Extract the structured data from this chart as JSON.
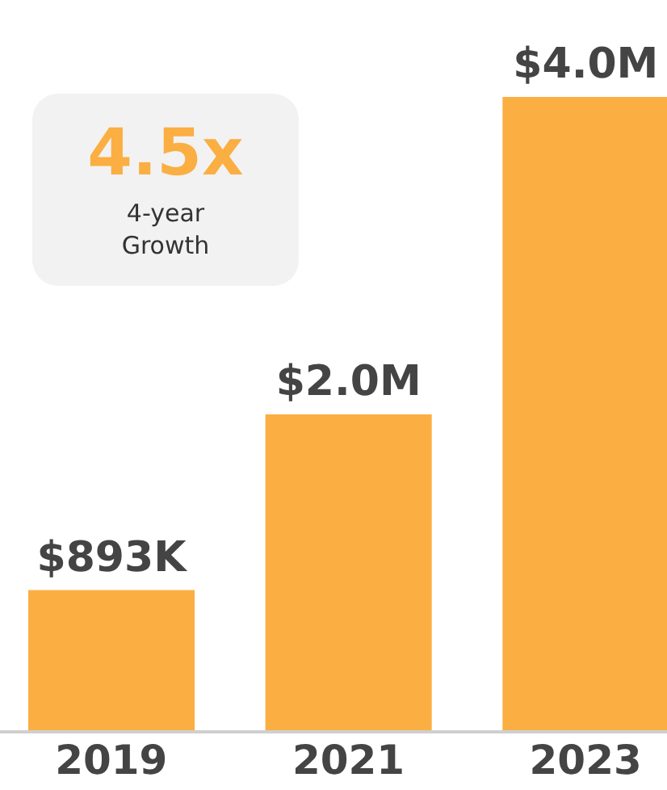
{
  "chart_data": {
    "type": "bar",
    "categories": [
      "2019",
      "2021",
      "2023"
    ],
    "values": [
      893000,
      2000000,
      4000000
    ],
    "value_labels": [
      "$893K",
      "$2.0M",
      "$4.0M"
    ],
    "color": "#fbae42",
    "annotations": [
      "4.5x",
      "4-year Growth"
    ]
  }
}
